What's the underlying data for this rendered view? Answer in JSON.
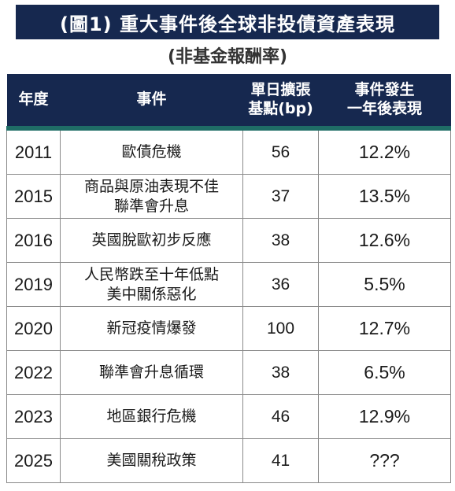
{
  "title": "(圖1) 重大事件後全球非投債資產表現",
  "subtitle": "(非基金報酬率)",
  "headers": {
    "year": "年度",
    "event": "事件",
    "bp_line1": "單日擴張",
    "bp_line2": "基點(bp)",
    "perf_line1": "事件發生",
    "perf_line2": "一年後表現"
  },
  "rows": [
    {
      "year": "2011",
      "event_line1": "歐債危機",
      "event_line2": "",
      "bp": "56",
      "perf": "12.2%"
    },
    {
      "year": "2015",
      "event_line1": "商品與原油表現不佳",
      "event_line2": "聯準會升息",
      "bp": "37",
      "perf": "13.5%"
    },
    {
      "year": "2016",
      "event_line1": "英國脫歐初步反應",
      "event_line2": "",
      "bp": "38",
      "perf": "12.6%"
    },
    {
      "year": "2019",
      "event_line1": "人民幣跌至十年低點",
      "event_line2": "美中關係惡化",
      "bp": "36",
      "perf": "5.5%"
    },
    {
      "year": "2020",
      "event_line1": "新冠疫情爆發",
      "event_line2": "",
      "bp": "100",
      "perf": "12.7%"
    },
    {
      "year": "2022",
      "event_line1": "聯準會升息循環",
      "event_line2": "",
      "bp": "38",
      "perf": "6.5%"
    },
    {
      "year": "2023",
      "event_line1": "地區銀行危機",
      "event_line2": "",
      "bp": "46",
      "perf": "12.9%"
    },
    {
      "year": "2025",
      "event_line1": "美國關稅政策",
      "event_line2": "",
      "bp": "41",
      "perf": "???"
    }
  ]
}
